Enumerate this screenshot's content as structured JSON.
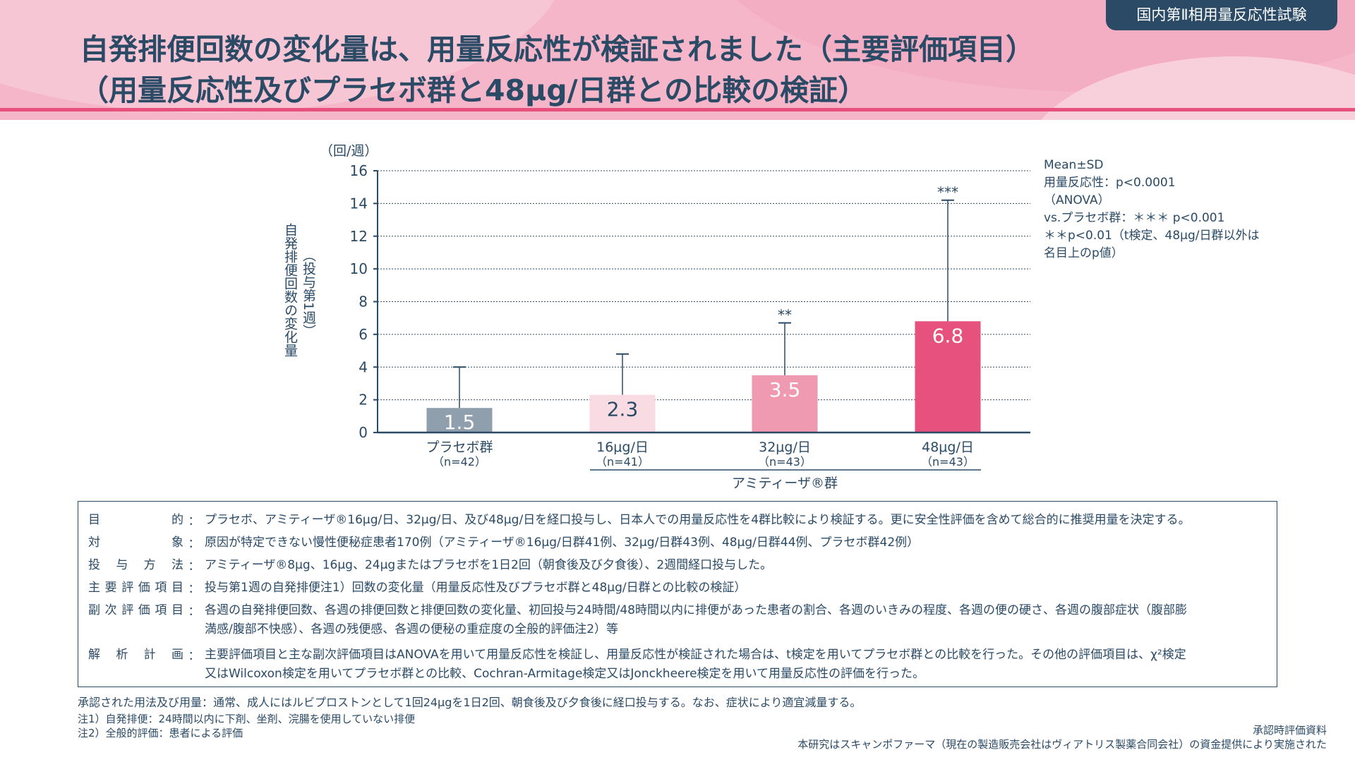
{
  "header": {
    "title_line1": "自発排便回数の変化量は、用量反応性が検証されました（主要評価項目）",
    "title_line2": "（用量反応性及びプラセボ群と48μg/日群との比較の検証）",
    "badge": "国内第Ⅱ相用量反応性試験",
    "colors": {
      "pink": "#f4b6c8",
      "accent": "#e6517d",
      "navy": "#2a4a66"
    }
  },
  "chart_data": {
    "type": "bar",
    "categories": [
      "プラセボ群",
      "16μg/日",
      "32μg/日",
      "48μg/日"
    ],
    "n_labels": [
      "（n=42）",
      "（n=41）",
      "（n=43）",
      "（n=43）"
    ],
    "values": [
      1.5,
      2.3,
      3.5,
      6.8
    ],
    "value_labels": [
      "1.5",
      "2.3",
      "3.5",
      "6.8"
    ],
    "error_upper": [
      4.0,
      4.8,
      6.7,
      14.2
    ],
    "significance": [
      "",
      "",
      "**",
      "***"
    ],
    "colors": [
      "#8f9fae",
      "#f9dbe4",
      "#f09ab1",
      "#e6517d"
    ],
    "value_label_colors": [
      "#ffffff",
      "#2a4a66",
      "#ffffff",
      "#ffffff"
    ],
    "ylim": [
      0,
      16
    ],
    "yticks": [
      0,
      2,
      4,
      6,
      8,
      10,
      12,
      14,
      16
    ],
    "unit": "（回/週）",
    "ylabel_main": "自発排便回数の変化量",
    "ylabel_sub": "（投与第1週）",
    "group_label": "アミティーザ®群",
    "grid": true,
    "legend": [
      "Mean±SD",
      "用量反応性：p<0.0001",
      "（ANOVA）",
      "vs.プラセボ群：＊＊＊ p<0.001",
      "＊＊p<0.01（t検定、48μg/日群以外は",
      "名目上のp値）"
    ]
  },
  "study": {
    "rows": [
      {
        "label": "目的",
        "value": [
          "プラセボ、アミティーザ®16μg/日、32μg/日、及び48μg/日を経口投与し、日本人での用量反応性を4群比較により検証する。更に安全性評価を含めて総合的に推奨用量を決定する。"
        ]
      },
      {
        "label": "対象",
        "value": [
          "原因が特定できない慢性便秘症患者170例（アミティーザ®16μg/日群41例、32μg/日群43例、48μg/日群44例、プラセボ群42例）"
        ]
      },
      {
        "label": "投与方法",
        "value": [
          "アミティーザ®8μg、16μg、24μgまたはプラセボを1日2回（朝食後及び夕食後）、2週間経口投与した。"
        ]
      },
      {
        "label": "主要評価項目",
        "value": [
          "投与第1週の自発排便注1）回数の変化量（用量反応性及びプラセボ群と48μg/日群との比較の検証）"
        ]
      },
      {
        "label": "副次評価項目",
        "value": [
          "各週の自発排便回数、各週の排便回数と排便回数の変化量、初回投与24時間/48時間以内に排便があった患者の割合、各週のいきみの程度、各週の便の硬さ、各週の腹部症状（腹部膨",
          "満感/腹部不快感）、各週の残便感、各週の便秘の重症度の全般的評価注2）等"
        ]
      },
      {
        "label": "解析計画",
        "value": [
          "主要評価項目と主な副次評価項目はANOVAを用いて用量反応性を検証し、用量反応性が検証された場合は、t検定を用いてプラセボ群との比較を行った。その他の評価項目は、χ²検定",
          "又はWilcoxon検定を用いてプラセボ群との比較、Cochran-Armitage検定又はJonckheere検定を用いて用量反応性の評価を行った。"
        ]
      }
    ],
    "colon": "："
  },
  "footer": {
    "dosage": "承認された用法及び用量：通常、成人にはルビプロストンとして1回24μgを1日2回、朝食後及び夕食後に経口投与する。なお、症状により適宜減量する。",
    "note1": "注1）自発排便：24時間以内に下剤、坐剤、浣腸を使用していない排便",
    "note2": "注2）全般的評価：患者による評価",
    "approval": "承認時評価資料",
    "funding": "本研究はスキャンポファーマ（現在の製造販売会社はヴィアトリス製薬合同会社）の資金提供により実施された"
  }
}
